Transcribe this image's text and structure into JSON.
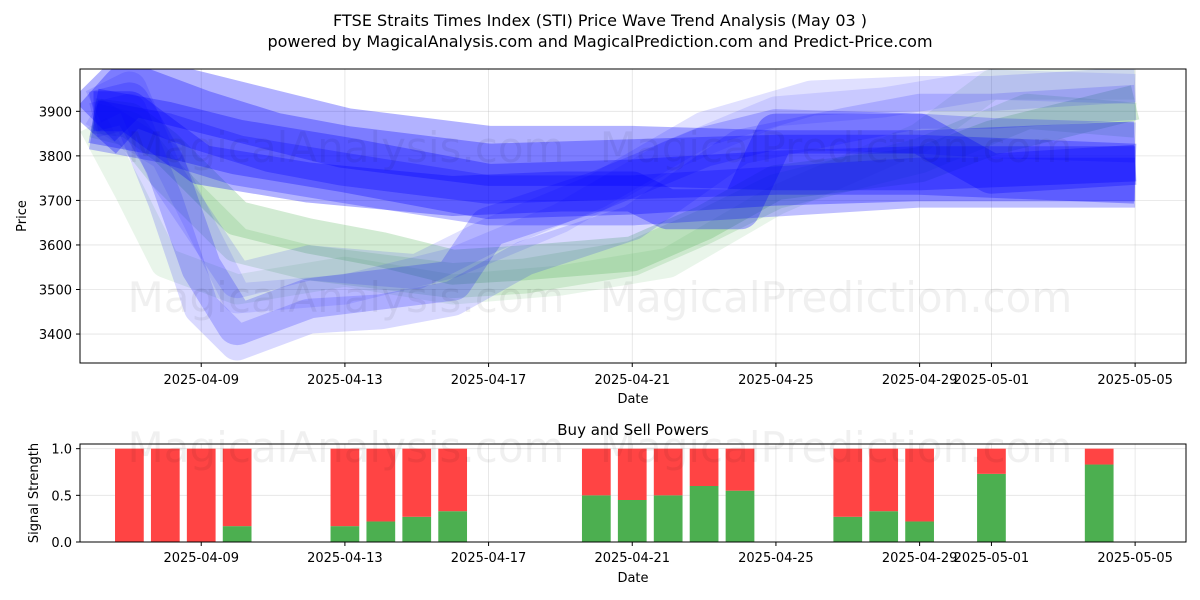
{
  "figure": {
    "title": "FTSE Straits Times Index (STI) Price Wave Trend Analysis (May 03 )",
    "subtitle": "powered by MagicalAnalysis.com and MagicalPrediction.com and Predict-Price.com",
    "watermarks": [
      "MagicalAnalysis.com",
      "MagicalPrediction.com"
    ]
  },
  "chart_data": [
    {
      "type": "area",
      "name": "price-wave-chart",
      "xlabel": "Date",
      "ylabel": "Price",
      "x_ticks": [
        "2025-04-09",
        "2025-04-13",
        "2025-04-17",
        "2025-04-21",
        "2025-04-25",
        "2025-04-29",
        "2025-05-01",
        "2025-05-05"
      ],
      "y_ticks": [
        3400,
        3500,
        3600,
        3700,
        3800,
        3900
      ],
      "xlim": [
        "2025-04-05 15:00",
        "2025-05-06 10:00"
      ],
      "ylim": [
        3335,
        3995
      ],
      "grid": true,
      "colors": {
        "blue": "#0000ff",
        "green": "#4caf50"
      },
      "bands": [
        {
          "color": "blue",
          "opacity": 0.3,
          "width": 60,
          "x": [
            "2025-04-06",
            "2025-04-07",
            "2025-04-09",
            "2025-04-11",
            "2025-04-13",
            "2025-04-17",
            "2025-04-21",
            "2025-04-25",
            "2025-04-29",
            "2025-05-02",
            "2025-05-05"
          ],
          "y": [
            3880,
            3960,
            3920,
            3880,
            3840,
            3800,
            3800,
            3790,
            3790,
            3800,
            3810
          ]
        },
        {
          "color": "blue",
          "opacity": 0.3,
          "width": 60,
          "x": [
            "2025-04-06",
            "2025-04-07",
            "2025-04-09",
            "2025-04-11",
            "2025-04-13",
            "2025-04-17",
            "2025-04-21",
            "2025-04-25",
            "2025-04-29",
            "2025-05-05"
          ],
          "y": [
            3850,
            3940,
            3880,
            3830,
            3800,
            3760,
            3770,
            3780,
            3780,
            3760
          ]
        },
        {
          "color": "blue",
          "opacity": 0.3,
          "width": 55,
          "x": [
            "2025-04-06",
            "2025-04-08",
            "2025-04-10",
            "2025-04-13",
            "2025-04-17",
            "2025-04-21",
            "2025-04-25",
            "2025-04-29",
            "2025-05-05"
          ],
          "y": [
            3890,
            3860,
            3820,
            3780,
            3720,
            3730,
            3750,
            3760,
            3760
          ]
        },
        {
          "color": "blue",
          "opacity": 0.25,
          "width": 50,
          "x": [
            "2025-04-06",
            "2025-04-08",
            "2025-04-10",
            "2025-04-13",
            "2025-04-17",
            "2025-04-21",
            "2025-04-25",
            "2025-04-29",
            "2025-05-05"
          ],
          "y": [
            3870,
            3840,
            3790,
            3750,
            3700,
            3700,
            3720,
            3740,
            3740
          ]
        },
        {
          "color": "blue",
          "opacity": 0.3,
          "width": 40,
          "x": [
            "2025-04-06",
            "2025-04-07",
            "2025-04-09",
            "2025-04-12",
            "2025-04-16",
            "2025-04-19",
            "2025-04-21",
            "2025-04-22",
            "2025-04-24",
            "2025-04-25",
            "2025-04-29",
            "2025-05-01",
            "2025-05-05"
          ],
          "y": [
            3900,
            3900,
            3780,
            3740,
            3710,
            3720,
            3720,
            3680,
            3680,
            3850,
            3850,
            3760,
            3780
          ]
        },
        {
          "color": "blue",
          "opacity": 0.2,
          "width": 40,
          "x": [
            "2025-04-06",
            "2025-04-07",
            "2025-04-08",
            "2025-04-09",
            "2025-04-10",
            "2025-04-12",
            "2025-04-14",
            "2025-04-16",
            "2025-04-17",
            "2025-04-20",
            "2025-04-23",
            "2025-04-25",
            "2025-04-29",
            "2025-05-01",
            "2025-05-05"
          ],
          "y": [
            3900,
            3920,
            3780,
            3550,
            3420,
            3480,
            3500,
            3520,
            3640,
            3720,
            3820,
            3860,
            3850,
            3840,
            3830
          ]
        },
        {
          "color": "blue",
          "opacity": 0.15,
          "width": 35,
          "x": [
            "2025-04-06",
            "2025-04-07",
            "2025-04-08",
            "2025-04-09",
            "2025-04-10",
            "2025-04-12",
            "2025-04-14",
            "2025-04-16",
            "2025-04-18",
            "2025-04-21",
            "2025-04-24",
            "2025-04-27",
            "2025-04-29",
            "2025-05-01",
            "2025-05-05"
          ],
          "y": [
            3880,
            3900,
            3700,
            3460,
            3380,
            3440,
            3450,
            3480,
            3570,
            3650,
            3820,
            3870,
            3900,
            3900,
            3920
          ]
        },
        {
          "color": "blue",
          "opacity": 0.12,
          "width": 35,
          "x": [
            "2025-04-06",
            "2025-04-07",
            "2025-04-08",
            "2025-04-10",
            "2025-04-12",
            "2025-04-15",
            "2025-04-17",
            "2025-04-20",
            "2025-04-23",
            "2025-04-26",
            "2025-04-29",
            "2025-05-01",
            "2025-05-05"
          ],
          "y": [
            3910,
            3950,
            3760,
            3520,
            3560,
            3540,
            3620,
            3720,
            3860,
            3930,
            3940,
            3940,
            3960
          ]
        },
        {
          "color": "blue",
          "opacity": 0.1,
          "width": 30,
          "x": [
            "2025-04-06",
            "2025-04-08",
            "2025-04-10",
            "2025-04-13",
            "2025-04-16",
            "2025-04-19",
            "2025-04-22",
            "2025-04-25",
            "2025-04-28",
            "2025-05-01",
            "2025-05-05"
          ],
          "y": [
            3900,
            3800,
            3480,
            3500,
            3560,
            3660,
            3800,
            3900,
            3920,
            3960,
            3950
          ]
        },
        {
          "color": "green",
          "opacity": 0.25,
          "width": 35,
          "x": [
            "2025-04-06",
            "2025-04-07",
            "2025-04-08",
            "2025-04-09",
            "2025-04-10",
            "2025-04-12",
            "2025-04-14",
            "2025-04-16",
            "2025-04-18",
            "2025-04-21",
            "2025-04-23",
            "2025-04-25",
            "2025-04-29",
            "2025-05-01",
            "2025-05-05"
          ],
          "y": [
            3890,
            3880,
            3820,
            3740,
            3660,
            3620,
            3590,
            3550,
            3560,
            3580,
            3650,
            3740,
            3780,
            3840,
            3920
          ]
        },
        {
          "color": "green",
          "opacity": 0.18,
          "width": 35,
          "x": [
            "2025-04-06",
            "2025-04-07",
            "2025-04-08",
            "2025-04-09",
            "2025-04-10",
            "2025-04-12",
            "2025-04-14",
            "2025-04-16",
            "2025-04-18",
            "2025-04-21",
            "2025-04-23",
            "2025-04-25",
            "2025-04-29",
            "2025-05-02",
            "2025-05-05"
          ],
          "y": [
            3880,
            3860,
            3760,
            3680,
            3600,
            3560,
            3540,
            3520,
            3530,
            3570,
            3640,
            3720,
            3800,
            3900,
            3880
          ]
        },
        {
          "color": "green",
          "opacity": 0.12,
          "width": 30,
          "x": [
            "2025-04-06",
            "2025-04-07",
            "2025-04-08",
            "2025-04-10",
            "2025-04-13",
            "2025-04-16",
            "2025-04-19",
            "2025-04-22",
            "2025-04-25",
            "2025-04-29",
            "2025-05-01",
            "2025-05-05"
          ],
          "y": [
            3870,
            3720,
            3560,
            3500,
            3540,
            3500,
            3520,
            3560,
            3700,
            3840,
            3960,
            3960
          ]
        }
      ]
    },
    {
      "type": "bar",
      "name": "buy-sell-power-chart",
      "title": "Buy and Sell Powers",
      "xlabel": "Date",
      "ylabel": "Signal Strength",
      "x_ticks": [
        "2025-04-09",
        "2025-04-13",
        "2025-04-17",
        "2025-04-21",
        "2025-04-25",
        "2025-04-29",
        "2025-05-01",
        "2025-05-05"
      ],
      "y_ticks": [
        "0.0",
        "0.5",
        "1.0"
      ],
      "xlim": [
        "2025-04-05 15:00",
        "2025-05-06 10:00"
      ],
      "ylim": [
        0,
        1.05
      ],
      "grid": true,
      "colors": {
        "buy": "#4caf50",
        "sell": "#ff4444"
      },
      "series": [
        {
          "name": "buy",
          "x": [
            "2025-04-07",
            "2025-04-08",
            "2025-04-09",
            "2025-04-10",
            "2025-04-13",
            "2025-04-14",
            "2025-04-15",
            "2025-04-16",
            "2025-04-20",
            "2025-04-21",
            "2025-04-22",
            "2025-04-23",
            "2025-04-24",
            "2025-04-27",
            "2025-04-28",
            "2025-04-29",
            "2025-05-01",
            "2025-05-04"
          ],
          "values": [
            0.0,
            0.0,
            0.0,
            0.17,
            0.17,
            0.22,
            0.27,
            0.33,
            0.5,
            0.45,
            0.5,
            0.6,
            0.55,
            0.27,
            0.33,
            0.22,
            0.73,
            0.83
          ]
        },
        {
          "name": "sell",
          "x": [
            "2025-04-07",
            "2025-04-08",
            "2025-04-09",
            "2025-04-10",
            "2025-04-13",
            "2025-04-14",
            "2025-04-15",
            "2025-04-16",
            "2025-04-20",
            "2025-04-21",
            "2025-04-22",
            "2025-04-23",
            "2025-04-24",
            "2025-04-27",
            "2025-04-28",
            "2025-04-29",
            "2025-05-01",
            "2025-05-04"
          ],
          "values": [
            1.0,
            1.0,
            1.0,
            0.83,
            0.83,
            0.78,
            0.73,
            0.67,
            0.5,
            0.55,
            0.5,
            0.4,
            0.45,
            0.73,
            0.67,
            0.78,
            0.27,
            0.17
          ]
        }
      ]
    }
  ]
}
